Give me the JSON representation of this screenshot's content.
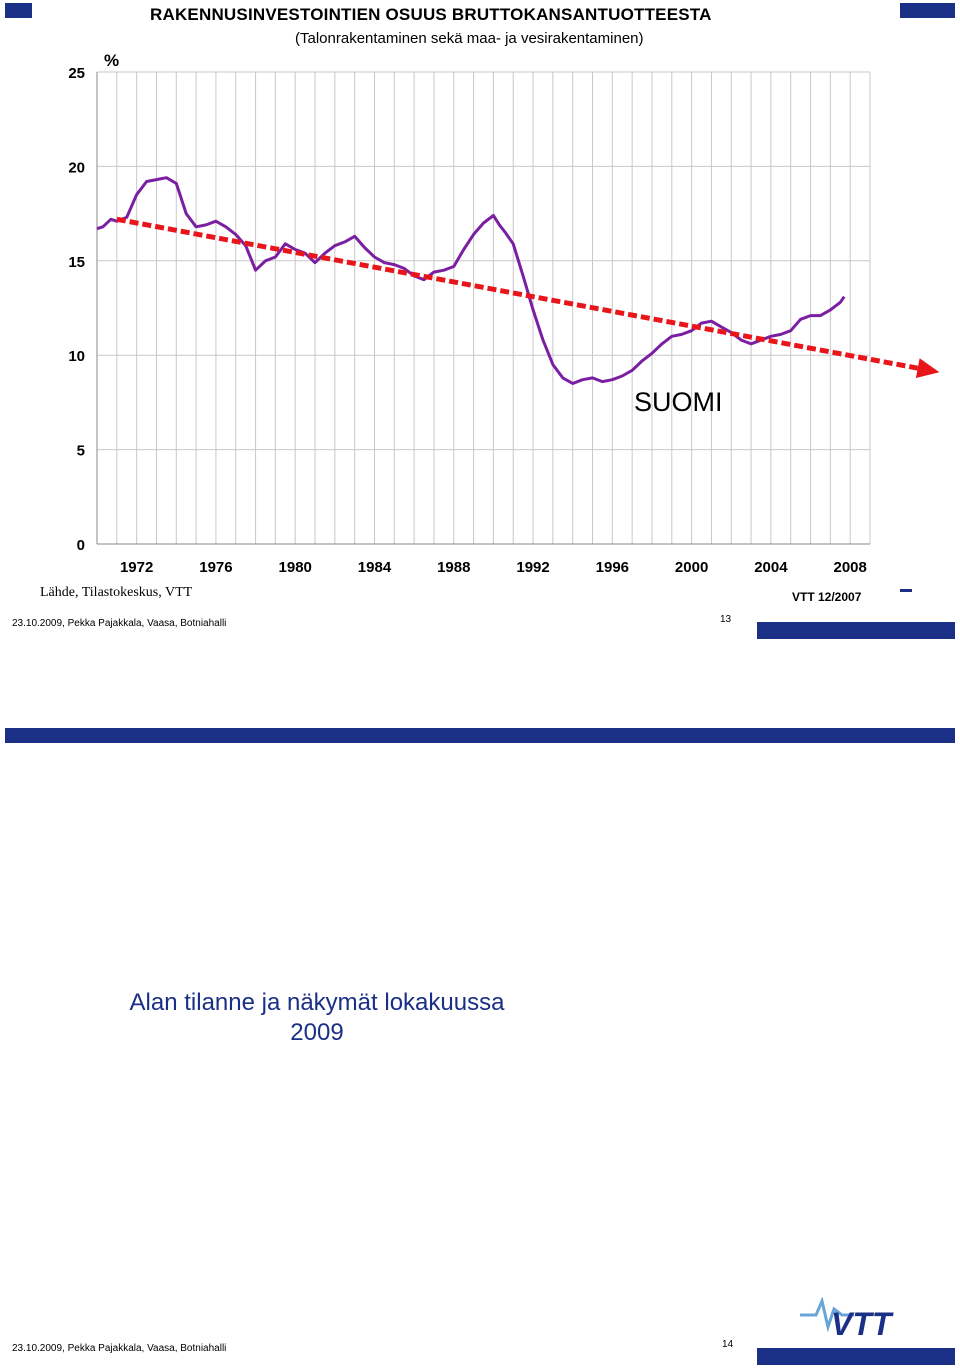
{
  "slide1": {
    "title": "RAKENNUSINVESTOINTIEN OSUUS BRUTTOKANSANTUOTTEESTA",
    "subtitle": "(Talonrakentaminen sekä maa- ja vesirakentaminen)",
    "source": "Lähde, Tilastokeskus, VTT",
    "stamp": "VTT 12/2007",
    "footer": "23.10.2009, Pekka Pajakkala, Vaasa, Botniahalli",
    "page_number": "13"
  },
  "slide2": {
    "title_line1": "Alan tilanne ja näkymät lokakuussa",
    "title_line2": "2009",
    "footer": "23.10.2009, Pekka Pajakkala, Vaasa, Botniahalli",
    "page_number": "14",
    "logo_text": "VTT"
  },
  "colors": {
    "line": "#7b1fa2",
    "trend": "#e8161b",
    "bar": "#1a2f86",
    "grid": "#c8c8c8"
  },
  "chart_data": {
    "type": "line",
    "title": "RAKENNUSINVESTOINTIEN OSUUS BRUTTOKANSANTUOTTEESTA",
    "subtitle": "(Talonrakentaminen sekä maa- ja vesirakentaminen)",
    "ylabel": "%",
    "ylim": [
      0,
      25
    ],
    "yticks": [
      0,
      5,
      10,
      15,
      20,
      25
    ],
    "xlim": [
      1970,
      2009
    ],
    "xticks": [
      1972,
      1976,
      1980,
      1984,
      1988,
      1992,
      1996,
      2000,
      2004,
      2008
    ],
    "grid": true,
    "annotation": "SUOMI",
    "series": [
      {
        "x": [
          1970.0,
          1970.3,
          1970.7,
          1971.0,
          1971.5,
          1972.0,
          1972.5,
          1973.0,
          1973.5,
          1974.0,
          1974.5,
          1975.0,
          1975.5,
          1976.0,
          1976.5,
          1977.0,
          1977.5,
          1978.0,
          1978.5,
          1979.0,
          1979.5,
          1980.0,
          1980.5,
          1981.0,
          1981.5,
          1982.0,
          1982.5,
          1983.0,
          1983.5,
          1984.0,
          1984.5,
          1985.0,
          1985.5,
          1986.0,
          1986.5,
          1987.0,
          1987.5,
          1988.0,
          1988.5,
          1989.0,
          1989.5,
          1990.0,
          1990.3,
          1990.6,
          1991.0,
          1991.5,
          1992.0,
          1992.5,
          1993.0,
          1993.5,
          1994.0,
          1994.5,
          1995.0,
          1995.5,
          1996.0,
          1996.5,
          1997.0,
          1997.5,
          1998.0,
          1998.5,
          1999.0,
          1999.5,
          2000.0,
          2000.5,
          2001.0,
          2001.5,
          2002.0,
          2002.5,
          2003.0,
          2003.5,
          2004.0,
          2004.5,
          2005.0,
          2005.5,
          2006.0,
          2006.5,
          2007.0,
          2007.5,
          2007.7
        ],
        "y": [
          16.7,
          16.8,
          17.2,
          17.1,
          17.3,
          18.5,
          19.2,
          19.3,
          19.4,
          19.1,
          17.5,
          16.8,
          16.9,
          17.1,
          16.8,
          16.4,
          15.8,
          14.5,
          15.0,
          15.2,
          15.9,
          15.6,
          15.4,
          14.9,
          15.4,
          15.8,
          16.0,
          16.3,
          15.7,
          15.2,
          14.9,
          14.8,
          14.6,
          14.2,
          14.0,
          14.4,
          14.5,
          14.7,
          15.6,
          16.4,
          17.0,
          17.4,
          16.9,
          16.5,
          15.9,
          14.2,
          12.4,
          10.8,
          9.5,
          8.8,
          8.5,
          8.7,
          8.8,
          8.6,
          8.7,
          8.9,
          9.2,
          9.7,
          10.1,
          10.6,
          11.0,
          11.1,
          11.3,
          11.7,
          11.8,
          11.5,
          11.2,
          10.8,
          10.6,
          10.8,
          11.0,
          11.1,
          11.3,
          11.9,
          12.1,
          12.1,
          12.4,
          12.8,
          13.1
        ]
      }
    ],
    "trend": {
      "x": [
        1971.0,
        2012.5
      ],
      "y": [
        17.2,
        9.1
      ]
    }
  }
}
